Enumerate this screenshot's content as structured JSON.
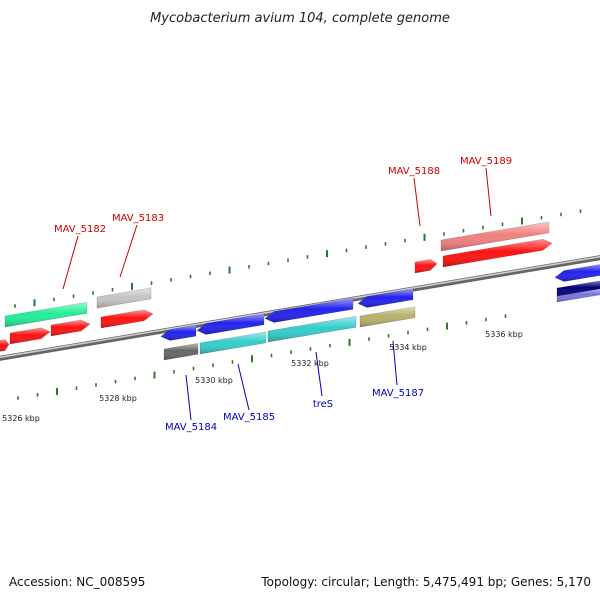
{
  "title": "Mycobacterium avium 104, complete genome",
  "footer": {
    "accession": "Accession: NC_008595",
    "summary": "Topology: circular; Length: 5,475,491 bp; Genes: 5,170"
  },
  "colors": {
    "forward_label": "#cc0000",
    "reverse_label": "#0000bb",
    "backbone": "#888888",
    "tick": "#2a7a2a"
  },
  "scale_labels": [
    {
      "text": "5326 kbp",
      "kbp": 5326
    },
    {
      "text": "5328 kbp",
      "kbp": 5328
    },
    {
      "text": "5330 kbp",
      "kbp": 5330
    },
    {
      "text": "5332 kbp",
      "kbp": 5332
    },
    {
      "text": "5334 kbp",
      "kbp": 5334
    },
    {
      "text": "5336 kbp",
      "kbp": 5336
    }
  ],
  "labeled_genes": [
    {
      "name": "MAV_5182",
      "strand": "+"
    },
    {
      "name": "MAV_5183",
      "strand": "+"
    },
    {
      "name": "MAV_5188",
      "strand": "+"
    },
    {
      "name": "MAV_5189",
      "strand": "+"
    },
    {
      "name": "MAV_5184",
      "strand": "-"
    },
    {
      "name": "MAV_5185",
      "strand": "-"
    },
    {
      "name": "treS",
      "strand": "-"
    },
    {
      "name": "MAV_5187",
      "strand": "-"
    }
  ]
}
